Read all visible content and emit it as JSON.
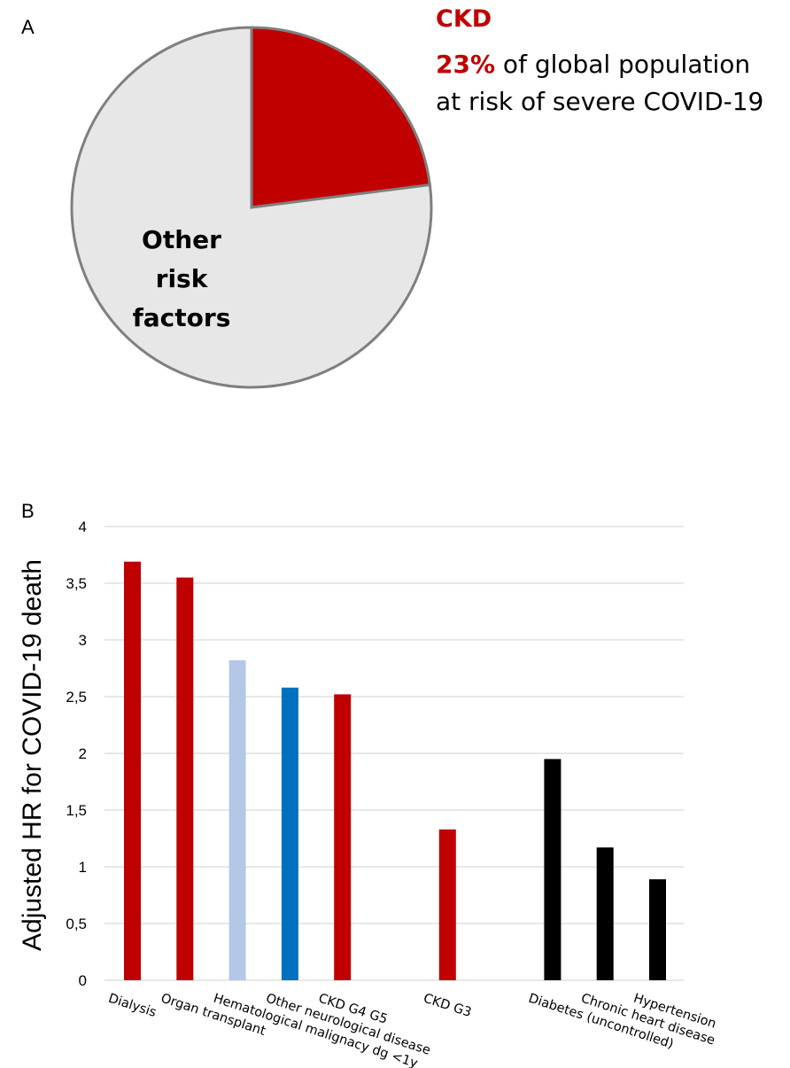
{
  "panel_a": {
    "label": "A",
    "title": "CKD",
    "stat_value": "23%",
    "stat_rest": " of global population",
    "stat_line2": "at risk of severe COVID-19",
    "other_label_lines": [
      "Other",
      "risk",
      "factors"
    ]
  },
  "panel_b": {
    "label": "B"
  },
  "colors": {
    "ckd_red": "#c00000",
    "light_blue": "#b4c7e7",
    "blue": "#0070c0",
    "black": "#000000",
    "pie_other": "#e7e7e7",
    "pie_outline": "#7f7f7f",
    "grid": "#d9d9d9"
  },
  "chart_data": [
    {
      "type": "pie",
      "slices": [
        {
          "name": "CKD",
          "value": 23,
          "color": "#c00000"
        },
        {
          "name": "Other risk factors",
          "value": 77,
          "color": "#e7e7e7"
        }
      ]
    },
    {
      "type": "bar",
      "ylabel": "Adjusted HR for COVID-19 death",
      "ylim": [
        0,
        4
      ],
      "yticks": [
        {
          "v": 0,
          "t": "0"
        },
        {
          "v": 0.5,
          "t": "0,5"
        },
        {
          "v": 1,
          "t": "1"
        },
        {
          "v": 1.5,
          "t": "1,5"
        },
        {
          "v": 2,
          "t": "2"
        },
        {
          "v": 2.5,
          "t": "2,5"
        },
        {
          "v": 3,
          "t": "3"
        },
        {
          "v": 3.5,
          "t": "3,5"
        },
        {
          "v": 4,
          "t": "4"
        }
      ],
      "grid": true,
      "bars": [
        {
          "label": "Dialysis",
          "value": 3.69,
          "slot": 0,
          "color": "#c00000"
        },
        {
          "label": "Organ transplant",
          "value": 3.55,
          "slot": 1,
          "color": "#c00000"
        },
        {
          "label": "Hematological malignacy dg <1y",
          "value": 2.82,
          "slot": 2,
          "color": "#b4c7e7"
        },
        {
          "label": "Other neurological disease",
          "value": 2.58,
          "slot": 3,
          "color": "#0070c0"
        },
        {
          "label": "CKD G4 G5",
          "value": 2.52,
          "slot": 4,
          "color": "#c00000"
        },
        {
          "label": "CKD G3",
          "value": 1.33,
          "slot": 6,
          "color": "#c00000"
        },
        {
          "label": "Diabetes (uncontrolled)",
          "value": 1.95,
          "slot": 8,
          "color": "#000000"
        },
        {
          "label": "Chronic heart disease",
          "value": 1.17,
          "slot": 9,
          "color": "#000000"
        },
        {
          "label": "Hypertension",
          "value": 0.89,
          "slot": 10,
          "color": "#000000"
        }
      ]
    }
  ]
}
